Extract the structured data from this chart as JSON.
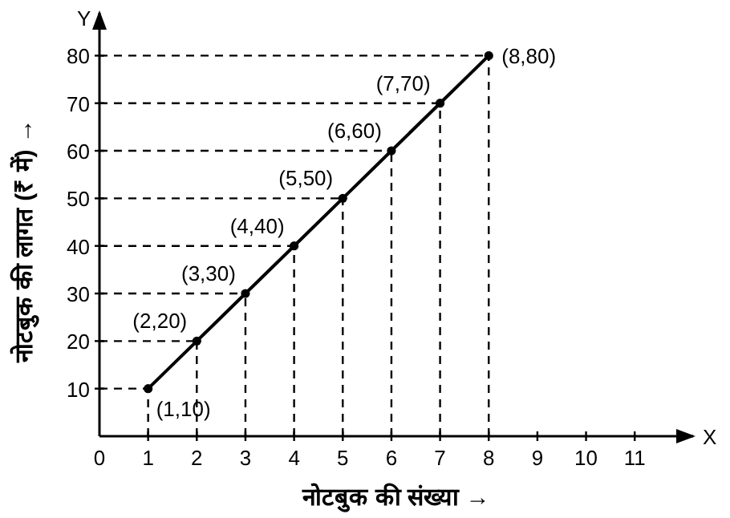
{
  "chart_data": {
    "type": "line",
    "xlabel": "नोटबुक की संख्या →",
    "ylabel": "नोटबुक की लागत (₹ में) →",
    "x": [
      1,
      2,
      3,
      4,
      5,
      6,
      7,
      8
    ],
    "series": [
      {
        "color": "#000000",
        "values": [
          10,
          20,
          30,
          40,
          50,
          60,
          70,
          80
        ]
      }
    ],
    "xlim": [
      0,
      12.2
    ],
    "ylim": [
      0,
      89
    ],
    "xticks": [
      0,
      1,
      2,
      3,
      4,
      5,
      6,
      7,
      8,
      9,
      10,
      11
    ],
    "yticks": [
      10,
      20,
      30,
      40,
      50,
      60,
      70,
      80
    ],
    "annotations": [
      "X",
      "Y",
      {
        "text": "(1,10)",
        "x": 1,
        "y": 10
      },
      {
        "text": "(2,20)",
        "x": 2,
        "y": 20
      },
      {
        "text": "(3,30)",
        "x": 3,
        "y": 30
      },
      {
        "text": "(4,40)",
        "x": 4,
        "y": 40
      },
      {
        "text": "(5,50)",
        "x": 5,
        "y": 50
      },
      {
        "text": "(6,60)",
        "x": 6,
        "y": 60
      },
      {
        "text": "(7,70)",
        "x": 7,
        "y": 70
      },
      {
        "text": "(8,80)",
        "x": 8,
        "y": 80
      }
    ],
    "grid": true,
    "marker": "circle",
    "line_style": "solid"
  }
}
